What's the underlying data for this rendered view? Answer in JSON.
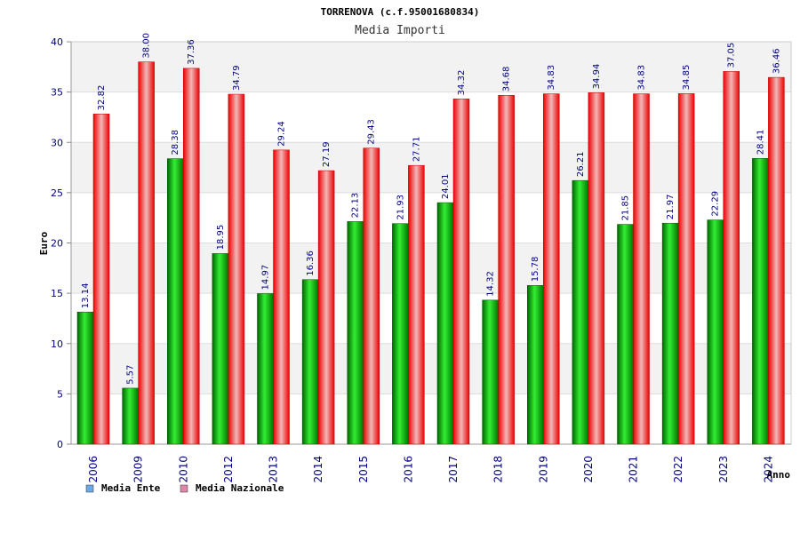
{
  "chart_data": {
    "type": "bar",
    "title": "TORRENOVA (c.f.95001680834)",
    "subtitle": "Media Importi",
    "ylabel": "Euro",
    "xlabel": "Anno",
    "ylim": [
      0,
      40
    ],
    "yticks": [
      "0",
      "5",
      "10",
      "15",
      "20",
      "25",
      "30",
      "35",
      "40"
    ],
    "grid": true,
    "legend_position": "bottom-left",
    "categories": [
      "2006",
      "2009",
      "2010",
      "2012",
      "2013",
      "2014",
      "2015",
      "2016",
      "2017",
      "2018",
      "2019",
      "2020",
      "2021",
      "2022",
      "2023",
      "2024"
    ],
    "series": [
      {
        "name": "Media Ente",
        "color": "#00aa00",
        "legend_color": "#6aa8e8",
        "values": [
          13.14,
          5.57,
          28.38,
          18.95,
          14.97,
          16.36,
          22.13,
          21.93,
          24.01,
          14.32,
          15.78,
          26.21,
          21.85,
          21.97,
          22.29,
          28.41
        ],
        "labels": [
          "13.14",
          "5.57",
          "28.38",
          "18.95",
          "14.97",
          "16.36",
          "22.13",
          "21.93",
          "24.01",
          "14.32",
          "15.78",
          "26.21",
          "21.85",
          "21.97",
          "22.29",
          "28.41"
        ]
      },
      {
        "name": "Media Nazionale",
        "color": "#ee1c24",
        "legend_color": "#dd88aa",
        "values": [
          32.82,
          38.0,
          37.36,
          34.79,
          29.24,
          27.19,
          29.43,
          27.71,
          34.32,
          34.68,
          34.83,
          34.94,
          34.83,
          34.85,
          37.05,
          36.46
        ],
        "labels": [
          "32.82",
          "38.00",
          "37.36",
          "34.79",
          "29.24",
          "27.19",
          "29.43",
          "27.71",
          "34.32",
          "34.68",
          "34.83",
          "34.94",
          "34.83",
          "34.85",
          "37.05",
          "36.46"
        ]
      }
    ]
  }
}
